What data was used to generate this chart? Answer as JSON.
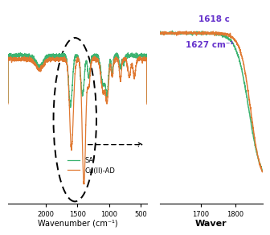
{
  "background_color": "#ffffff",
  "sa_color": "#3cb371",
  "cu_color": "#e07830",
  "annotation_color": "#6633cc",
  "annotation1": "1618 c",
  "annotation2": "1627 cm⁻¹",
  "legend_sa": "SA",
  "legend_cu": "Cu(II)-AD",
  "xlabel_left": "Wavenumber (cm⁻¹)",
  "xlabel_right": "Waver",
  "xticks_left": [
    500,
    1000,
    1500,
    2000
  ],
  "xticks_right": [
    1700,
    1800
  ]
}
